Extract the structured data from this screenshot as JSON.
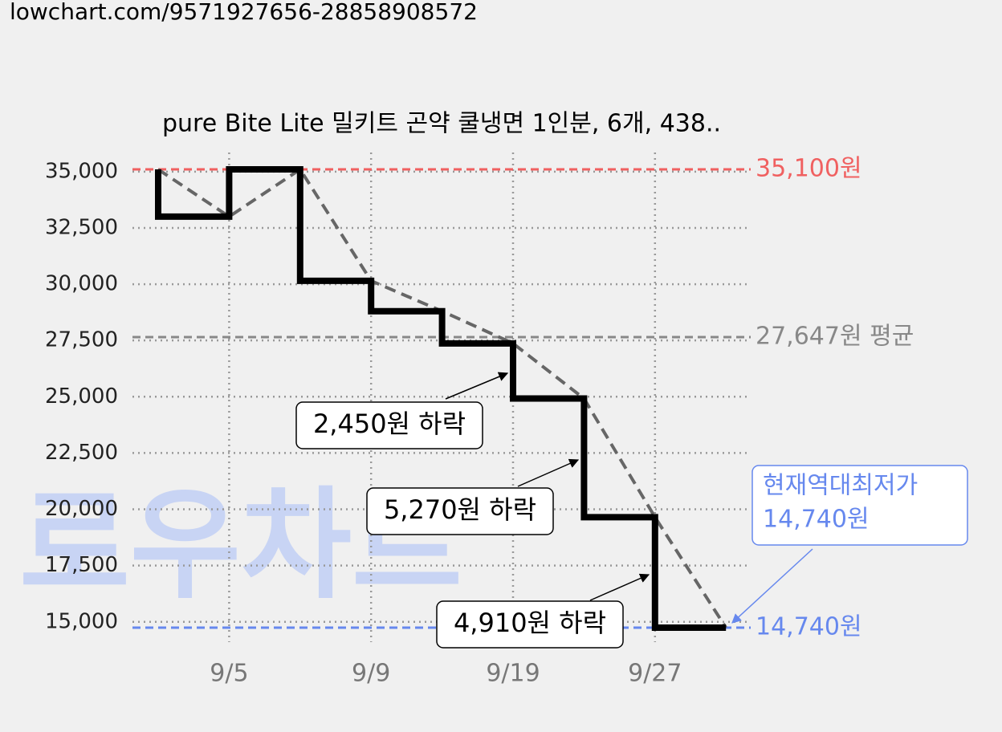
{
  "header": "lowchart.com/9571927656-28858908572",
  "chart_data": {
    "type": "step-line",
    "title": "pure Bite Lite 밀키트 곤약 쿨냉면 1인분, 6개, 438..",
    "watermark": "로우차트",
    "categories": [
      null,
      "9/5",
      null,
      "9/9",
      null,
      "9/19",
      null,
      "9/27",
      null
    ],
    "values": [
      35100,
      33000,
      35100,
      30150,
      28800,
      27370,
      24920,
      19650,
      14740
    ],
    "color": "#000000",
    "trend_color": "#666666",
    "ylim": [
      14100,
      35850
    ],
    "yticks": [
      {
        "value": 15000,
        "label": "15,000"
      },
      {
        "value": 17500,
        "label": "17,500"
      },
      {
        "value": 20000,
        "label": "20,000"
      },
      {
        "value": 22500,
        "label": "22,500"
      },
      {
        "value": 25000,
        "label": "25,000"
      },
      {
        "value": 27500,
        "label": "27,500"
      },
      {
        "value": 30000,
        "label": "30,000"
      },
      {
        "value": 32500,
        "label": "32,500"
      },
      {
        "value": 35000,
        "label": "35,000"
      }
    ],
    "grid": true,
    "reference_lines": [
      {
        "value": 35100,
        "label": "35,100원",
        "color": "#f06060"
      },
      {
        "value": 27647,
        "label": "27,647원 평균",
        "color": "#888888"
      },
      {
        "value": 14740,
        "label": "14,740원",
        "color": "#6688ee"
      }
    ],
    "annotations": [
      "2,450원 하락",
      "5,270원 하락",
      "4,910원 하락"
    ],
    "low_callout": [
      "현재역대최저가",
      "14,740원"
    ]
  }
}
